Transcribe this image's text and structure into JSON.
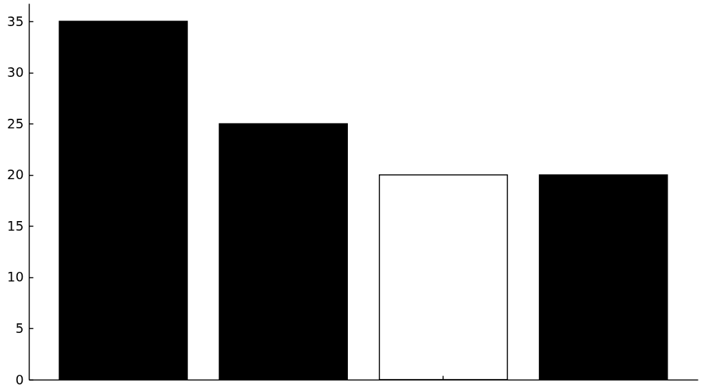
{
  "chart_data": {
    "type": "bar",
    "categories": [
      null,
      null,
      null,
      null
    ],
    "values": [
      35,
      25,
      20,
      20
    ],
    "colors": [
      "#000000",
      "#000000",
      "#ffffff",
      "#000000"
    ],
    "ylim": [
      0,
      36.75
    ],
    "yticks": [
      0,
      5,
      10,
      15,
      20,
      25,
      30,
      35
    ],
    "tick_labels": "y"
  }
}
